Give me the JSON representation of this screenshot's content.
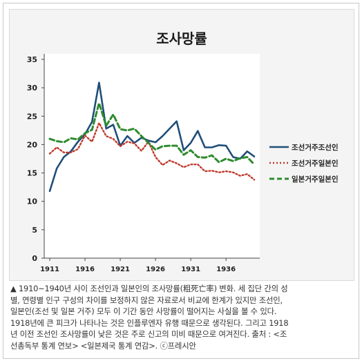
{
  "chart_data": {
    "type": "line",
    "title": "조사망률",
    "x": [
      1911,
      1912,
      1913,
      1914,
      1915,
      1916,
      1917,
      1918,
      1919,
      1920,
      1921,
      1922,
      1923,
      1924,
      1925,
      1926,
      1927,
      1928,
      1929,
      1930,
      1931,
      1932,
      1933,
      1934,
      1935,
      1936,
      1937,
      1938,
      1939,
      1940
    ],
    "x_ticks": [
      "1911",
      "1916",
      "1921",
      "1926",
      "1931",
      "1936"
    ],
    "y_ticks": [
      "0",
      "5",
      "10",
      "15",
      "20",
      "25",
      "30",
      "35"
    ],
    "ylim": [
      0,
      35
    ],
    "grid": false,
    "legend_position": "right",
    "series": [
      {
        "name": "조선거주조선인",
        "color": "#1f4e79",
        "style": "solid",
        "values": [
          11.8,
          15.8,
          17.8,
          18.8,
          20.5,
          21.8,
          24.0,
          30.9,
          22.8,
          23.5,
          19.8,
          21.5,
          20.3,
          21.2,
          20.7,
          20.4,
          21.5,
          22.8,
          24.1,
          19.0,
          20.3,
          22.4,
          19.5,
          19.5,
          19.9,
          19.8,
          17.8,
          17.5,
          18.8,
          17.9
        ]
      },
      {
        "name": "조선거주일본인",
        "color": "#c0392b",
        "style": "dotted",
        "values": [
          18.4,
          19.5,
          18.6,
          18.6,
          19.2,
          21.6,
          20.5,
          23.8,
          21.5,
          21.0,
          19.7,
          20.5,
          20.2,
          18.9,
          20.5,
          17.8,
          16.4,
          17.2,
          16.7,
          16.0,
          16.5,
          16.5,
          15.3,
          15.4,
          15.1,
          15.3,
          15.1,
          14.5,
          14.8,
          13.8
        ]
      },
      {
        "name": "일본거주일본인",
        "color": "#2e8b2e",
        "style": "dashed",
        "values": [
          21.0,
          20.6,
          20.4,
          21.1,
          20.9,
          22.0,
          22.6,
          27.3,
          23.3,
          25.3,
          22.7,
          22.5,
          22.8,
          21.5,
          20.3,
          19.1,
          19.7,
          19.8,
          19.8,
          18.2,
          19.0,
          17.8,
          17.7,
          18.1,
          16.9,
          17.5,
          17.1,
          17.6,
          17.8,
          16.5
        ]
      }
    ]
  },
  "caption": {
    "lines": [
      "▲ 1910~1940년 사이 조선인과 일본인의 조사망률(粗死亡率) 변화. 세 집단 간의 성",
      "별, 연령별 인구 구성의 차이를 보정하지 않은 자료로서 비교에 한계가 있지만 조선인,",
      "일본인(조선 및 일본 거주) 모두 이 기간 동안 사망률이 떨어지는 사실을 볼 수 있다.",
      "1918년에 큰 피크가 나타나는 것은 인플루엔자 유행 때문으로 생각된다. 그리고 1918",
      "년 이전 조선인 조사망률이 낮은 것은 주로 신고의 미비 때문으로 여겨진다. 출처 : <조",
      "선총독부 통계 연보> <일본제국 통계 연감>. ⓒ프레시안"
    ]
  }
}
